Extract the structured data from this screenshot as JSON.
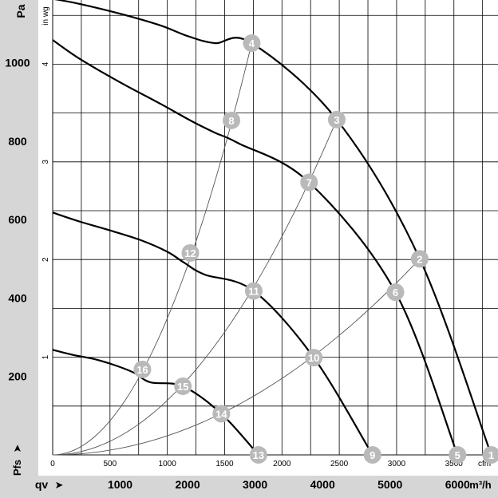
{
  "chart_data": {
    "type": "line",
    "title": "",
    "xlabel": "qv",
    "ylabel": "Pfs",
    "units": {
      "y_primary": "Pa",
      "y_secondary": "in wg",
      "x_primary": "m³/h",
      "x_secondary": "cfm"
    },
    "grid": true,
    "xlim_m3h": [
      0,
      6600
    ],
    "ylim_pa": [
      0,
      1160
    ],
    "y_ticks_pa": [
      "200",
      "400",
      "600",
      "800",
      "1000"
    ],
    "y_ticks_inwg": [
      "1",
      "2",
      "3",
      "4"
    ],
    "x_ticks_cfm": [
      "0",
      "500",
      "1000",
      "1500",
      "2000",
      "2500",
      "3000",
      "3500"
    ],
    "x_ticks_m3h": [
      "1000",
      "2000",
      "3000",
      "4000",
      "5000",
      "6000"
    ],
    "series": [
      {
        "x": [
          0,
          400,
          1000,
          1600,
          2000,
          2400,
          2950
        ],
        "y": [
          1163,
          1150,
          1125,
          1095,
          1068,
          1050,
          1050
        ]
      },
      {
        "x": [
          0,
          400,
          1000,
          1600,
          2050,
          2400,
          2750
        ],
        "y": [
          1058,
          1010,
          950,
          895,
          852,
          822,
          795
        ]
      },
      {
        "x": [
          0,
          400,
          800,
          1300,
          1700,
          1950,
          2250
        ],
        "y": [
          618,
          595,
          575,
          548,
          518,
          490,
          460
        ]
      },
      {
        "x": [
          0,
          300,
          600,
          900,
          1200,
          1450
        ],
        "y": [
          268,
          255,
          245,
          230,
          210,
          185
        ]
      }
    ],
    "operating_points": [
      {
        "label": "1",
        "x": 6500,
        "y": 0
      },
      {
        "label": "2",
        "x": 5440,
        "y": 500
      },
      {
        "label": "3",
        "x": 4210,
        "y": 855
      },
      {
        "label": "4",
        "x": 2950,
        "y": 1050
      },
      {
        "label": "5",
        "x": 6000,
        "y": 0
      },
      {
        "label": "6",
        "x": 5080,
        "y": 415
      },
      {
        "label": "7",
        "x": 3800,
        "y": 695
      },
      {
        "label": "8",
        "x": 2650,
        "y": 853
      },
      {
        "label": "9",
        "x": 4740,
        "y": 0
      },
      {
        "label": "10",
        "x": 3870,
        "y": 248
      },
      {
        "label": "11",
        "x": 2980,
        "y": 418
      },
      {
        "label": "12",
        "x": 2040,
        "y": 515
      },
      {
        "label": "13",
        "x": 3050,
        "y": 0
      },
      {
        "label": "14",
        "x": 2500,
        "y": 105
      },
      {
        "label": "15",
        "x": 1930,
        "y": 175
      },
      {
        "label": "16",
        "x": 1330,
        "y": 218
      }
    ],
    "system_curves": [
      {
        "through": [
          "4",
          "8",
          "12",
          "16"
        ]
      },
      {
        "through": [
          "3",
          "7",
          "11",
          "15"
        ]
      },
      {
        "through": [
          "2",
          "6",
          "10",
          "14"
        ]
      }
    ],
    "colors": {
      "curve": "#000000",
      "system_curve": "#555555",
      "marker_fill": "#b9b9b9",
      "marker_text": "#ffffff",
      "axis_band": "#d6d6d6"
    }
  }
}
